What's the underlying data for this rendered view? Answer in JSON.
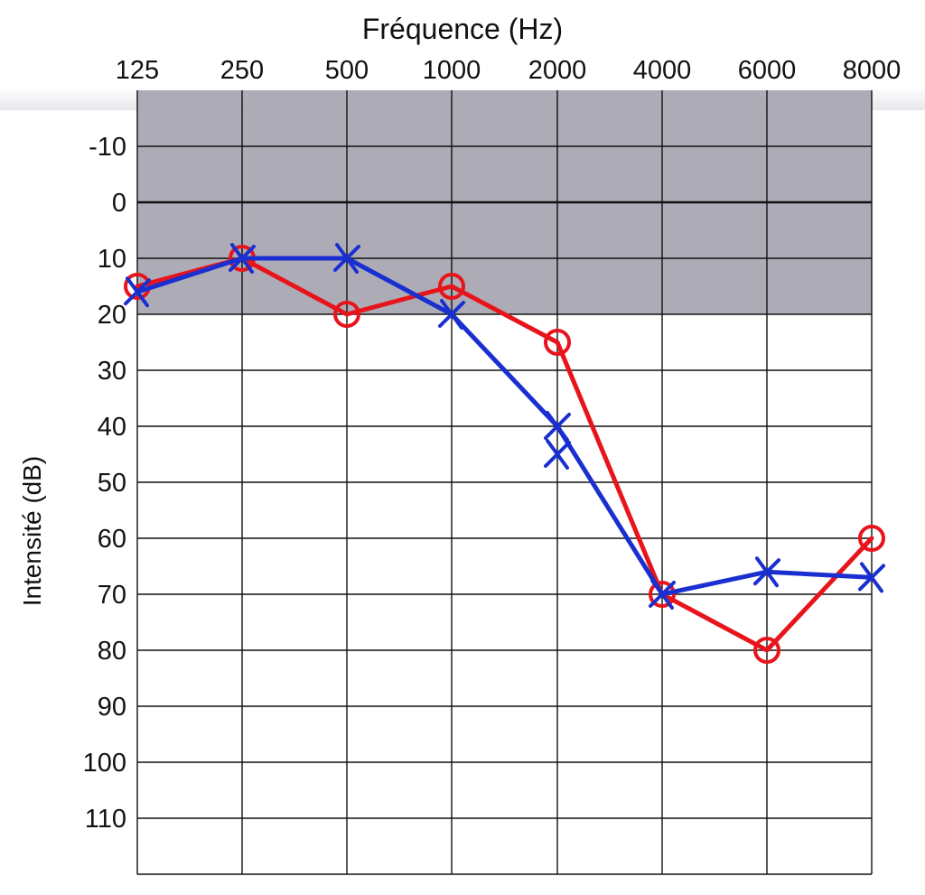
{
  "chart_data": {
    "type": "line",
    "title": "Fréquence (Hz)",
    "xlabel": "Fréquence (Hz)",
    "ylabel": "Intensité (dB)",
    "x_categories": [
      "125",
      "250",
      "500",
      "1000",
      "2000",
      "4000",
      "6000",
      "8000"
    ],
    "y_ticks": [
      "-10",
      "0",
      "10",
      "20",
      "30",
      "40",
      "50",
      "60",
      "70",
      "80",
      "90",
      "100",
      "110"
    ],
    "ylim": [
      -20,
      120
    ],
    "y_inverted": true,
    "shaded_band": [
      -20,
      20
    ],
    "grid": true,
    "series": [
      {
        "marker": "circle",
        "color": "#e8141b",
        "x": [
          "125",
          "250",
          "500",
          "1000",
          "2000",
          "4000",
          "6000",
          "8000"
        ],
        "values": [
          15,
          10,
          20,
          15,
          25,
          70,
          80,
          60
        ]
      },
      {
        "marker": "cross",
        "color": "#1a2fd0",
        "x": [
          "125",
          "250",
          "500",
          "1000",
          "2000",
          "4000",
          "6000",
          "8000"
        ],
        "values": [
          16,
          10,
          10,
          20,
          40,
          70,
          66,
          67
        ]
      }
    ],
    "extra_points": [
      {
        "marker": "cross",
        "color": "#1a2fd0",
        "x": "2000",
        "value": 45
      }
    ]
  },
  "colors": {
    "band": "#a9a8b2",
    "grid": "#111111"
  }
}
